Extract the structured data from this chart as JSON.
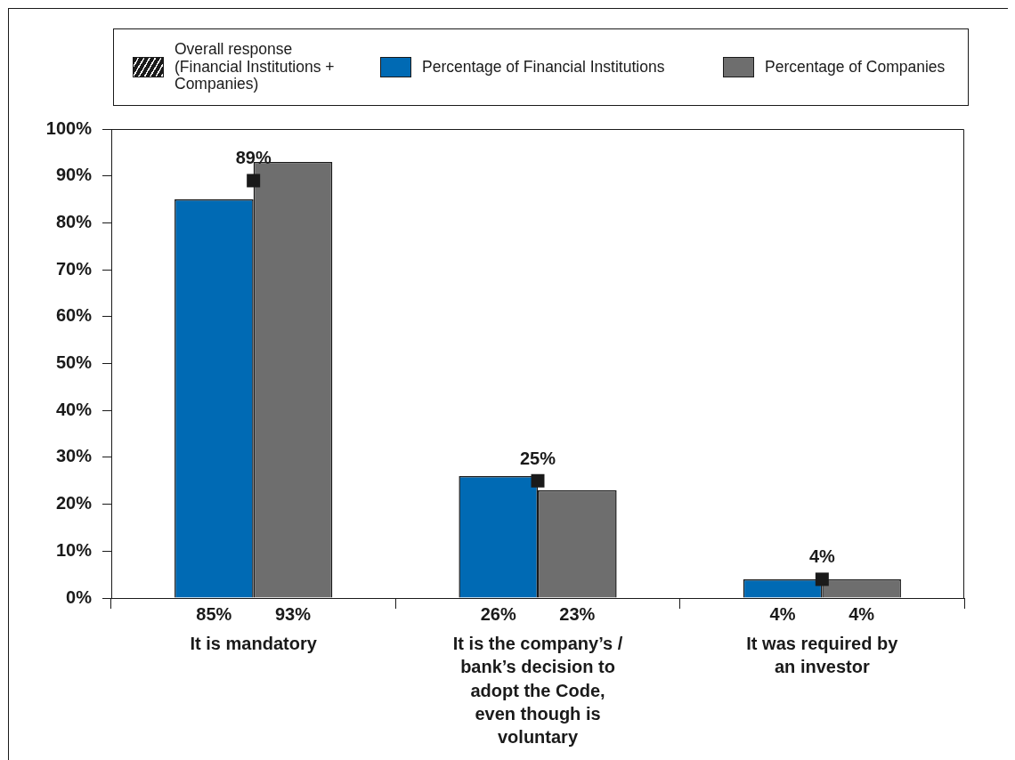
{
  "chart_data": {
    "type": "bar",
    "categories": [
      "It is mandatory",
      "It is the company’s / bank’s decision to adopt the Code, even though is voluntary",
      "It was required by an investor"
    ],
    "series": [
      {
        "name": "Overall response (Financial Institutions + Companies)",
        "type": "scatter",
        "color": "#1a1a1a",
        "x": [
          "It is mandatory",
          "It is the company’s / bank’s decision to adopt the Code, even though is voluntary",
          "It was required by an investor"
        ],
        "values": [
          89,
          25,
          4
        ],
        "value_labels": [
          "89%",
          "25%",
          "4%"
        ]
      },
      {
        "name": "Percentage of Financial Institutions",
        "color": "#006ab4",
        "values": [
          85,
          26,
          4
        ],
        "value_labels": [
          "85%",
          "26%",
          "4%"
        ]
      },
      {
        "name": "Percentage of Companies",
        "color": "#6e6e6e",
        "values": [
          93,
          23,
          4
        ],
        "value_labels": [
          "93%",
          "23%",
          "4%"
        ]
      }
    ],
    "ylim": [
      0,
      100
    ],
    "yticks": [
      {
        "value": 0,
        "label": "0%"
      },
      {
        "value": 10,
        "label": "10%"
      },
      {
        "value": 20,
        "label": "20%"
      },
      {
        "value": 30,
        "label": "30%"
      },
      {
        "value": 40,
        "label": "40%"
      },
      {
        "value": 50,
        "label": "50%"
      },
      {
        "value": 60,
        "label": "60%"
      },
      {
        "value": 70,
        "label": "70%"
      },
      {
        "value": 80,
        "label": "80%"
      },
      {
        "value": 90,
        "label": "90%"
      },
      {
        "value": 100,
        "label": "100%"
      }
    ],
    "grid": false,
    "legend": "top",
    "marker": "square"
  }
}
